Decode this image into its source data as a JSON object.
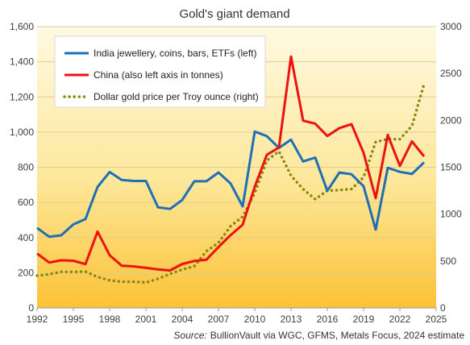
{
  "chart_data": {
    "type": "line",
    "title": "Gold's giant demand",
    "x": [
      1992,
      1993,
      1994,
      1995,
      1996,
      1997,
      1998,
      1999,
      2000,
      2001,
      2002,
      2003,
      2004,
      2005,
      2006,
      2007,
      2008,
      2009,
      2010,
      2011,
      2012,
      2013,
      2014,
      2015,
      2016,
      2017,
      2018,
      2019,
      2020,
      2021,
      2022,
      2023,
      2024
    ],
    "x_ticks": [
      "1992",
      "1995",
      "1998",
      "2001",
      "2004",
      "2007",
      "2010",
      "2013",
      "2016",
      "2019",
      "2022",
      "2025"
    ],
    "x_range": [
      1992,
      2025
    ],
    "y_left_range": [
      0,
      1600
    ],
    "y_left_ticks": [
      "0",
      "200",
      "400",
      "600",
      "800",
      "1,000",
      "1,200",
      "1,400",
      "1,600"
    ],
    "y_right_range": [
      0,
      3000
    ],
    "y_right_ticks": [
      "0",
      "500",
      "1000",
      "1500",
      "2000",
      "2500",
      "3000"
    ],
    "grid": true,
    "legend_position": "top-left",
    "series": [
      {
        "name": "India jewellery, coins, bars, ETFs (left)",
        "axis": "left",
        "color": "#1f6fb5",
        "style": "solid",
        "values": [
          455,
          405,
          413,
          475,
          505,
          688,
          773,
          728,
          722,
          722,
          572,
          563,
          614,
          720,
          720,
          770,
          708,
          577,
          1003,
          977,
          910,
          957,
          833,
          855,
          666,
          770,
          760,
          692,
          445,
          797,
          774,
          762,
          828
        ]
      },
      {
        "name": "China (also left axis in tonnes)",
        "axis": "left",
        "color": "#ee1111",
        "style": "solid",
        "values": [
          309,
          258,
          271,
          268,
          249,
          434,
          300,
          240,
          236,
          228,
          219,
          213,
          250,
          267,
          274,
          346,
          414,
          473,
          689,
          871,
          912,
          1430,
          1065,
          1048,
          978,
          1023,
          1045,
          882,
          624,
          984,
          808,
          947,
          862
        ]
      },
      {
        "name": "Dollar gold price per Troy ounce (right)",
        "axis": "right",
        "color": "#8a8a10",
        "style": "dotted",
        "values": [
          344,
          360,
          384,
          384,
          388,
          331,
          294,
          279,
          279,
          271,
          310,
          363,
          409,
          444,
          604,
          695,
          872,
          972,
          1225,
          1572,
          1669,
          1411,
          1266,
          1160,
          1251,
          1257,
          1268,
          1393,
          1770,
          1799,
          1800,
          1941,
          2386
        ]
      }
    ]
  },
  "source": {
    "label": "Source:",
    "text": "BullionVault via  WGC, GFMS, Metals Focus, 2024 estimate"
  }
}
